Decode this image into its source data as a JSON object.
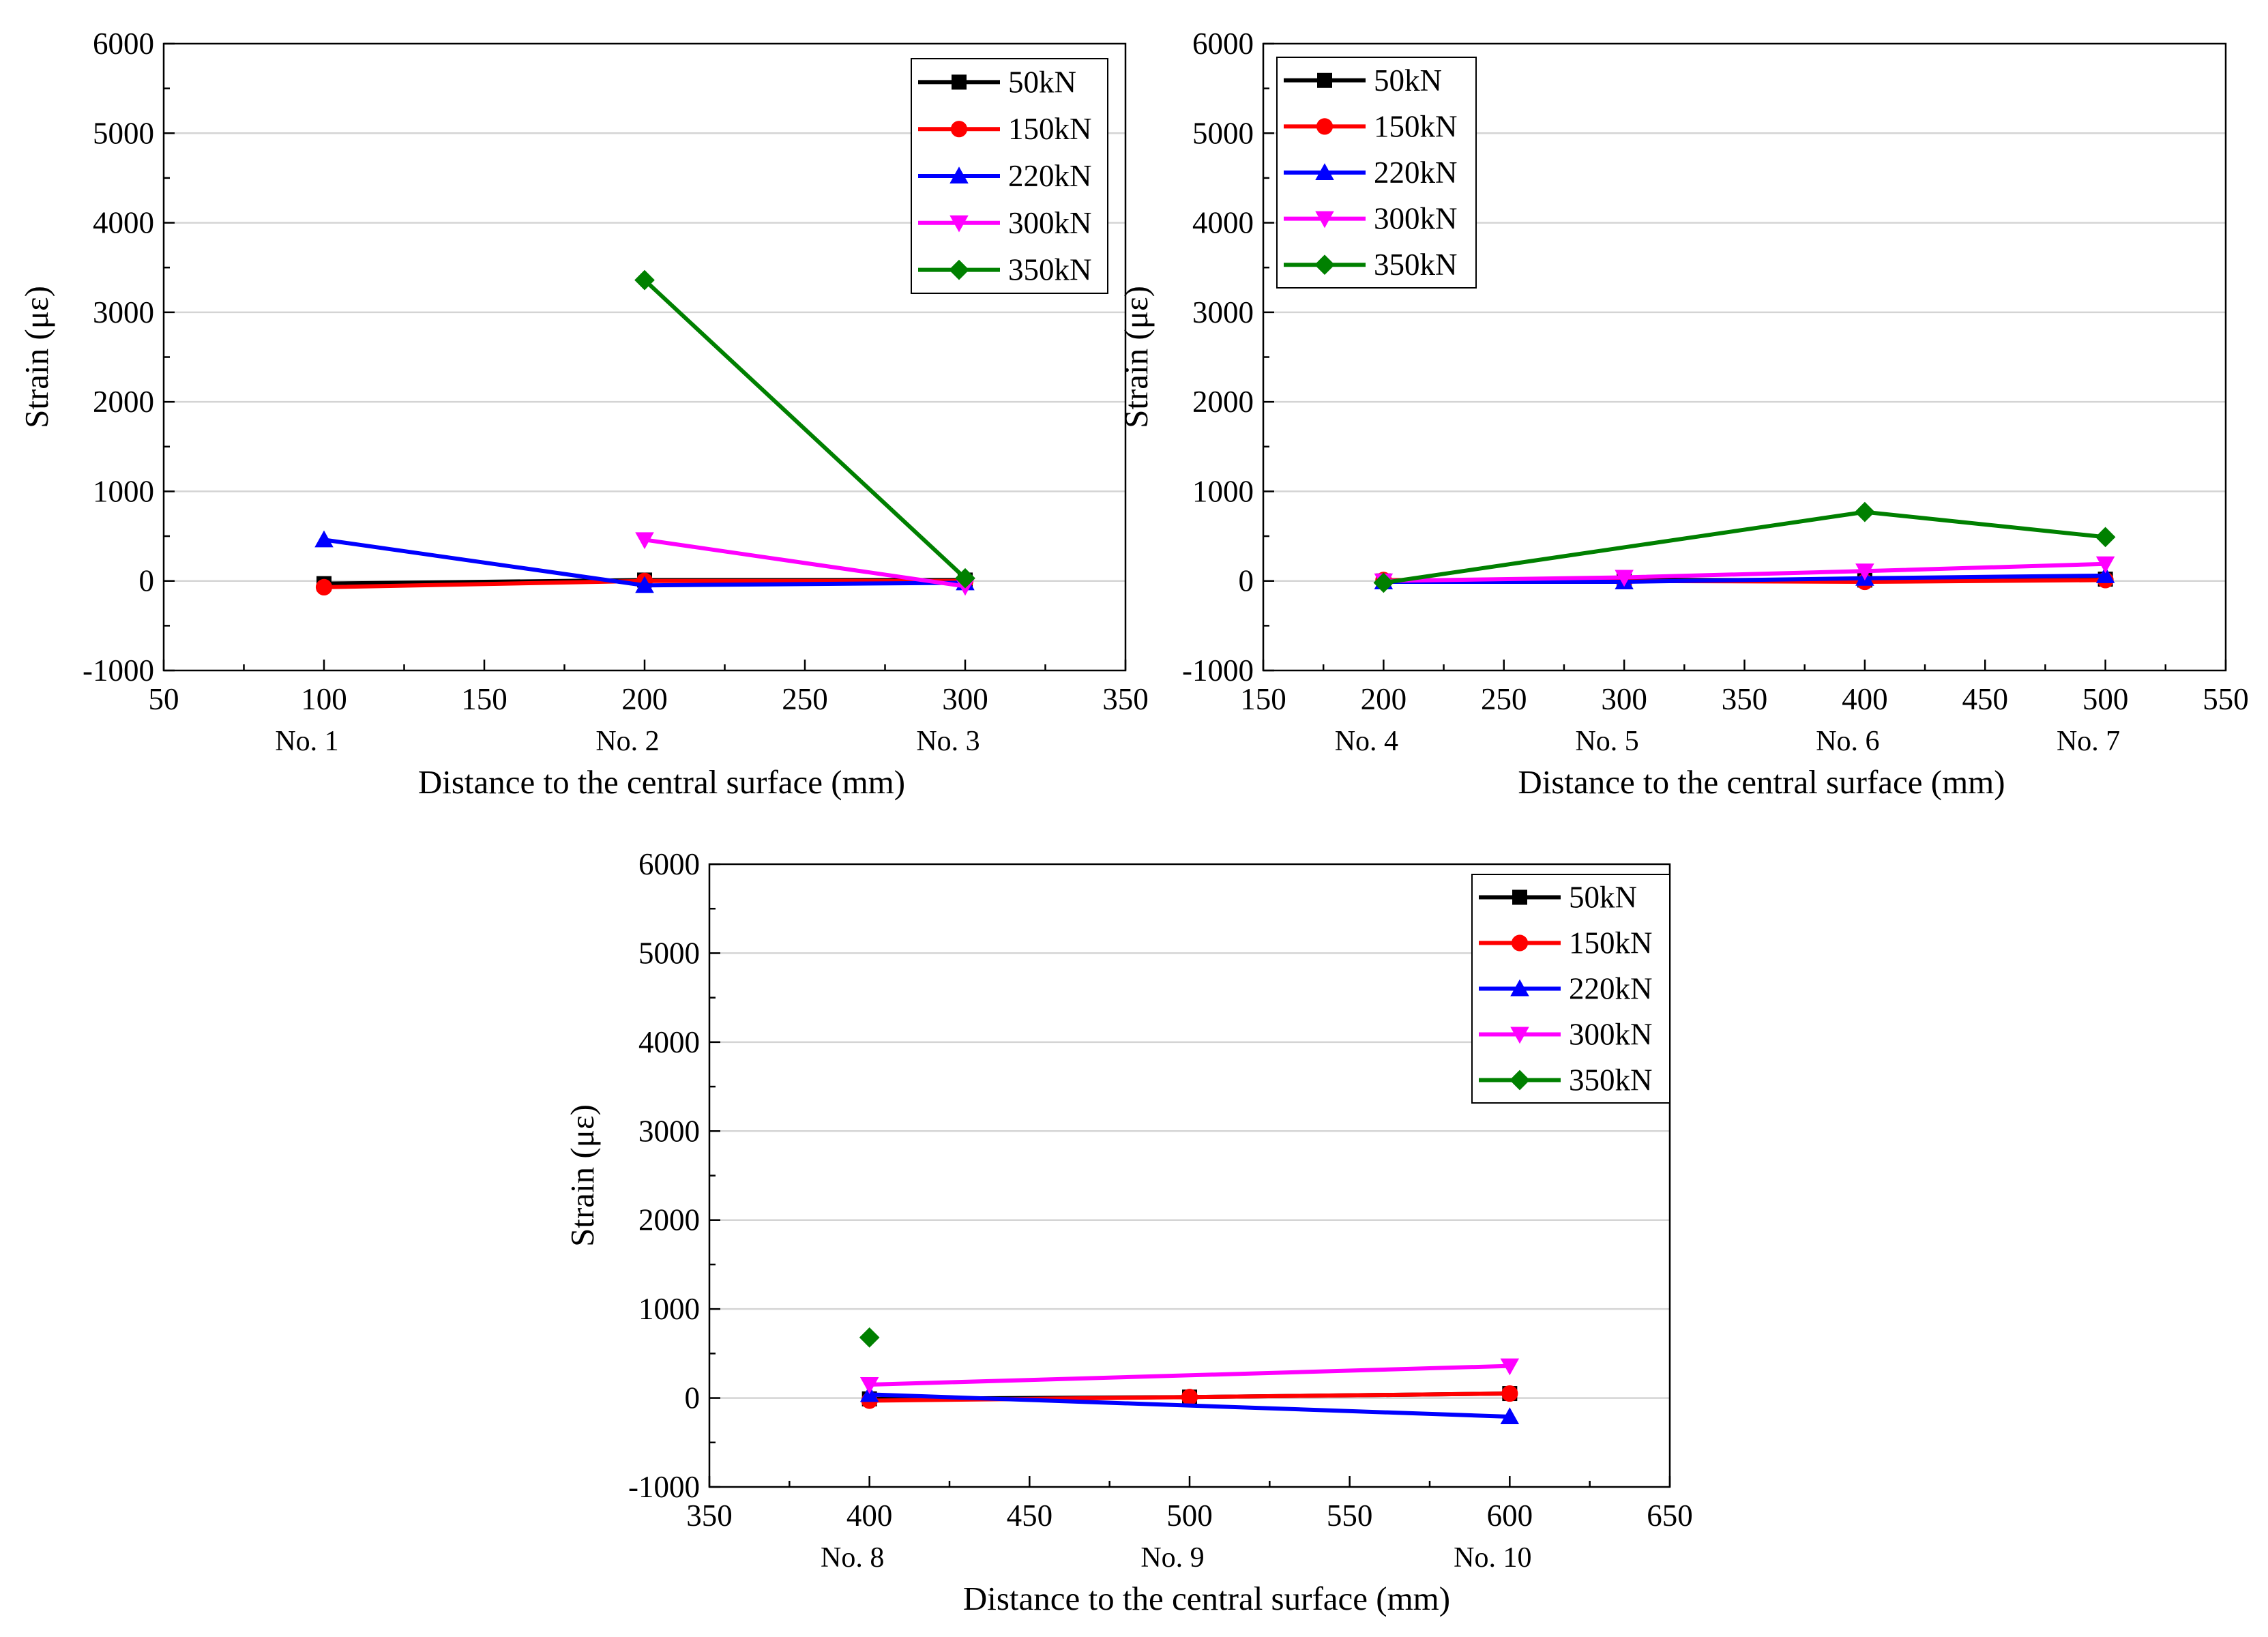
{
  "chart_data": [
    {
      "type": "line",
      "panel": "top-left",
      "xlabel": "Distance to the central surface (mm)",
      "ylabel": "Strain (με)",
      "xlim": [
        50,
        350
      ],
      "ylim": [
        -1000,
        6000
      ],
      "xticks": [
        50,
        100,
        150,
        200,
        250,
        300,
        350
      ],
      "yticks": [
        -1000,
        0,
        1000,
        2000,
        3000,
        4000,
        5000,
        6000
      ],
      "grid": "horizontal",
      "legend_position": "top-right",
      "gauges": [
        {
          "x": 100,
          "label": "No. 1"
        },
        {
          "x": 200,
          "label": "No. 2"
        },
        {
          "x": 300,
          "label": "No. 3"
        }
      ],
      "series": [
        {
          "name": "50kN",
          "color": "#000000",
          "marker": "square",
          "x": [
            100,
            200,
            300
          ],
          "y": [
            -30,
            10,
            10
          ]
        },
        {
          "name": "150kN",
          "color": "#ff0000",
          "marker": "circle",
          "x": [
            100,
            200,
            300
          ],
          "y": [
            -70,
            0,
            0
          ]
        },
        {
          "name": "220kN",
          "color": "#0000ff",
          "marker": "triangle-up",
          "x": [
            100,
            200,
            300
          ],
          "y": [
            460,
            -50,
            -20
          ]
        },
        {
          "name": "300kN",
          "color": "#ff00ff",
          "marker": "triangle-down",
          "x": [
            200,
            300
          ],
          "y": [
            460,
            -60
          ]
        },
        {
          "name": "350kN",
          "color": "#008000",
          "marker": "diamond",
          "x": [
            200,
            300
          ],
          "y": [
            3360,
            30
          ]
        }
      ]
    },
    {
      "type": "line",
      "panel": "top-right",
      "xlabel": "Distance to the central surface (mm)",
      "ylabel": "Strain (με)",
      "xlim": [
        150,
        550
      ],
      "ylim": [
        -1000,
        6000
      ],
      "xticks": [
        150,
        200,
        250,
        300,
        350,
        400,
        450,
        500,
        550
      ],
      "yticks": [
        -1000,
        0,
        1000,
        2000,
        3000,
        4000,
        5000,
        6000
      ],
      "grid": "horizontal",
      "legend_position": "top-left",
      "gauges": [
        {
          "x": 200,
          "label": "No. 4"
        },
        {
          "x": 300,
          "label": "No. 5"
        },
        {
          "x": 400,
          "label": "No. 6"
        },
        {
          "x": 500,
          "label": "No. 7"
        }
      ],
      "series": [
        {
          "name": "50kN",
          "color": "#000000",
          "marker": "square",
          "x": [
            200,
            300,
            400,
            500
          ],
          "y": [
            0,
            10,
            10,
            20
          ]
        },
        {
          "name": "150kN",
          "color": "#ff0000",
          "marker": "circle",
          "x": [
            200,
            300,
            400,
            500
          ],
          "y": [
            10,
            0,
            -10,
            10
          ]
        },
        {
          "name": "220kN",
          "color": "#0000ff",
          "marker": "triangle-up",
          "x": [
            200,
            300,
            400,
            500
          ],
          "y": [
            -10,
            -10,
            30,
            60
          ]
        },
        {
          "name": "300kN",
          "color": "#ff00ff",
          "marker": "triangle-down",
          "x": [
            200,
            300,
            400,
            500
          ],
          "y": [
            0,
            40,
            110,
            190
          ]
        },
        {
          "name": "350kN",
          "color": "#008000",
          "marker": "diamond",
          "x": [
            200,
            400,
            500
          ],
          "y": [
            -20,
            770,
            490
          ]
        }
      ]
    },
    {
      "type": "line",
      "panel": "bottom",
      "xlabel": "Distance to the central surface (mm)",
      "ylabel": "Strain (με)",
      "xlim": [
        350,
        650
      ],
      "ylim": [
        -1000,
        6000
      ],
      "xticks": [
        350,
        400,
        450,
        500,
        550,
        600,
        650
      ],
      "yticks": [
        -1000,
        0,
        1000,
        2000,
        3000,
        4000,
        5000,
        6000
      ],
      "grid": "horizontal",
      "legend_position": "top-right",
      "gauges": [
        {
          "x": 400,
          "label": "No. 8"
        },
        {
          "x": 500,
          "label": "No. 9"
        },
        {
          "x": 600,
          "label": "No. 10"
        }
      ],
      "series": [
        {
          "name": "50kN",
          "color": "#000000",
          "marker": "square",
          "x": [
            400,
            500,
            600
          ],
          "y": [
            -10,
            10,
            50
          ]
        },
        {
          "name": "150kN",
          "color": "#ff0000",
          "marker": "circle",
          "x": [
            400,
            500,
            600
          ],
          "y": [
            -30,
            10,
            50
          ]
        },
        {
          "name": "220kN",
          "color": "#0000ff",
          "marker": "triangle-up",
          "x": [
            400,
            600
          ],
          "y": [
            40,
            -210
          ]
        },
        {
          "name": "300kN",
          "color": "#ff00ff",
          "marker": "triangle-down",
          "x": [
            400,
            600
          ],
          "y": [
            150,
            360
          ]
        },
        {
          "name": "350kN",
          "color": "#008000",
          "marker": "diamond",
          "x": [
            400
          ],
          "y": [
            680
          ]
        }
      ]
    }
  ]
}
